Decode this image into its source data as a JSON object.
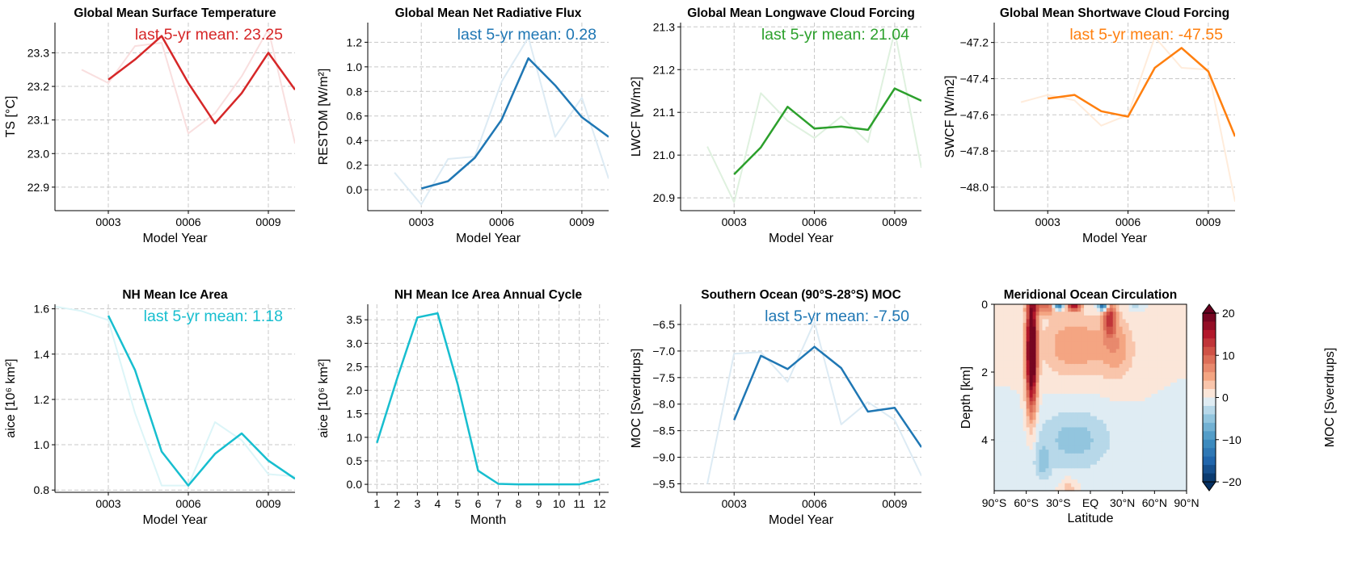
{
  "chart_data": [
    {
      "id": "ts",
      "type": "line",
      "title": "Global Mean Surface Temperature",
      "xlabel": "Model Year",
      "ylabel": "TS [°C]",
      "annotation": "last 5-yr mean: 23.25",
      "color": "#d62728",
      "xlim": [
        1,
        10
      ],
      "ylim": [
        22.83,
        23.39
      ],
      "yticks": [
        "22.9",
        "23.0",
        "23.1",
        "23.2",
        "23.3"
      ],
      "xticks": [
        "0003",
        "0006",
        "0009"
      ],
      "series": [
        {
          "style": "annual",
          "x": [
            3,
            4,
            5,
            6,
            7,
            8,
            9,
            10
          ],
          "y": [
            23.22,
            23.28,
            23.35,
            23.21,
            23.09,
            23.18,
            23.3,
            23.19
          ]
        },
        {
          "style": "faint",
          "x": [
            2,
            3,
            4,
            5,
            6,
            7,
            8,
            9,
            10
          ],
          "y": [
            23.25,
            23.21,
            23.32,
            23.33,
            23.06,
            23.12,
            23.23,
            23.37,
            23.03
          ]
        }
      ]
    },
    {
      "id": "restom",
      "type": "line",
      "title": "Global Mean Net Radiative Flux",
      "xlabel": "Model Year",
      "ylabel": "RESTOM [W/m²]",
      "annotation": "last 5-yr mean: 0.28",
      "color": "#1f77b4",
      "xlim": [
        1,
        10
      ],
      "ylim": [
        -0.17,
        1.36
      ],
      "yticks": [
        "0.0",
        "0.2",
        "0.4",
        "0.6",
        "0.8",
        "1.0",
        "1.2"
      ],
      "xticks": [
        "0003",
        "0006",
        "0009"
      ],
      "series": [
        {
          "style": "annual",
          "x": [
            3,
            4,
            5,
            6,
            7,
            8,
            9,
            10
          ],
          "y": [
            0.01,
            0.07,
            0.26,
            0.57,
            1.07,
            0.85,
            0.59,
            0.43
          ]
        },
        {
          "style": "faint",
          "x": [
            2,
            3,
            4,
            5,
            6,
            7,
            8,
            9,
            10
          ],
          "y": [
            0.14,
            -0.12,
            0.25,
            0.27,
            0.88,
            1.24,
            0.43,
            0.75,
            0.09
          ]
        }
      ]
    },
    {
      "id": "lwcf",
      "type": "line",
      "title": "Global Mean Longwave Cloud Forcing",
      "xlabel": "Model Year",
      "ylabel": "LWCF [W/m2]",
      "annotation": "last 5-yr mean: 21.04",
      "color": "#2ca02c",
      "xlim": [
        1,
        10
      ],
      "ylim": [
        20.87,
        21.31
      ],
      "yticks": [
        "20.9",
        "21.0",
        "21.1",
        "21.2",
        "21.3"
      ],
      "xticks": [
        "0003",
        "0006",
        "0009"
      ],
      "series": [
        {
          "style": "annual",
          "x": [
            3,
            4,
            5,
            6,
            7,
            8,
            9,
            10
          ],
          "y": [
            20.955,
            21.018,
            21.113,
            21.062,
            21.067,
            21.059,
            21.156,
            21.127
          ]
        },
        {
          "style": "faint",
          "x": [
            2,
            3,
            4,
            5,
            6,
            7,
            8,
            9,
            10
          ],
          "y": [
            21.02,
            20.89,
            21.145,
            21.08,
            21.04,
            21.09,
            21.03,
            21.29,
            20.97
          ]
        }
      ]
    },
    {
      "id": "swcf",
      "type": "line",
      "title": "Global Mean Shortwave Cloud Forcing",
      "xlabel": "Model Year",
      "ylabel": "SWCF [W/m2]",
      "annotation": "last 5-yr mean: -47.55",
      "color": "#ff7f0e",
      "xlim": [
        1,
        10
      ],
      "ylim": [
        -48.13,
        -47.09
      ],
      "yticks": [
        "−48.0",
        "−47.8",
        "−47.6",
        "−47.4",
        "−47.2"
      ],
      "xticks": [
        "0003",
        "0006",
        "0009"
      ],
      "series": [
        {
          "style": "annual",
          "x": [
            3,
            4,
            5,
            6,
            7,
            8,
            9,
            10
          ],
          "y": [
            -47.51,
            -47.49,
            -47.58,
            -47.61,
            -47.34,
            -47.23,
            -47.36,
            -47.72
          ]
        },
        {
          "style": "faint",
          "x": [
            2,
            3,
            4,
            5,
            6,
            7,
            8,
            9,
            10
          ],
          "y": [
            -47.53,
            -47.49,
            -47.52,
            -47.66,
            -47.6,
            -47.17,
            -47.34,
            -47.35,
            -48.08
          ]
        }
      ]
    },
    {
      "id": "ice",
      "type": "line",
      "title": "NH Mean Ice Area",
      "xlabel": "Model Year",
      "ylabel": "aice [10⁶ km²]",
      "annotation": "last 5-yr mean: 1.18",
      "color": "#17becf",
      "xlim": [
        1,
        10
      ],
      "ylim": [
        0.79,
        1.62
      ],
      "yticks": [
        "0.8",
        "1.0",
        "1.2",
        "1.4",
        "1.6"
      ],
      "xticks": [
        "0003",
        "0006",
        "0009"
      ],
      "series": [
        {
          "style": "annual",
          "x": [
            3,
            4,
            5,
            6,
            7,
            8,
            9,
            10
          ],
          "y": [
            1.57,
            1.33,
            0.97,
            0.82,
            0.96,
            1.05,
            0.93,
            0.85
          ]
        },
        {
          "style": "faint",
          "x": [
            1,
            2,
            3,
            4,
            5,
            6,
            7,
            8,
            9,
            10
          ],
          "y": [
            1.61,
            1.59,
            1.55,
            1.14,
            0.82,
            0.82,
            1.1,
            1.02,
            0.87,
            0.86
          ]
        }
      ]
    },
    {
      "id": "icecycle",
      "type": "line",
      "title": "NH Mean Ice Area Annual Cycle",
      "xlabel": "Month",
      "ylabel": "aice [10⁶ km²]",
      "annotation": "",
      "color": "#17becf",
      "xlim": [
        0.55,
        12.45
      ],
      "ylim": [
        -0.17,
        3.83
      ],
      "yticks": [
        "0.0",
        "0.5",
        "1.0",
        "1.5",
        "2.0",
        "2.5",
        "3.0",
        "3.5"
      ],
      "xticks": [
        "1",
        "2",
        "3",
        "4",
        "5",
        "6",
        "7",
        "8",
        "9",
        "10",
        "11",
        "12"
      ],
      "series": [
        {
          "style": "annual",
          "x": [
            1,
            2,
            3,
            4,
            5,
            6,
            7,
            8,
            9,
            10,
            11,
            12
          ],
          "y": [
            0.88,
            2.25,
            3.55,
            3.64,
            2.12,
            0.29,
            0.01,
            0.0,
            0.0,
            0.0,
            0.0,
            0.11
          ]
        }
      ]
    },
    {
      "id": "moc",
      "type": "line",
      "title": "Southern Ocean (90°S-28°S) MOC",
      "xlabel": "Model Year",
      "ylabel": "MOC [Sverdrups]",
      "annotation": "last 5-yr mean: -7.50",
      "color": "#1f77b4",
      "xlim": [
        1,
        10
      ],
      "ylim": [
        -9.66,
        -6.12
      ],
      "yticks": [
        "−9.5",
        "−9.0",
        "−8.5",
        "−8.0",
        "−7.5",
        "−7.0",
        "−6.5"
      ],
      "xticks": [
        "0003",
        "0006",
        "0009"
      ],
      "series": [
        {
          "style": "annual",
          "x": [
            3,
            4,
            5,
            6,
            7,
            8,
            9,
            10
          ],
          "y": [
            -8.3,
            -7.09,
            -7.34,
            -6.92,
            -7.32,
            -8.14,
            -8.07,
            -8.81
          ]
        },
        {
          "style": "faint",
          "x": [
            2,
            3,
            4,
            5,
            6,
            7,
            8,
            9,
            10
          ],
          "y": [
            -9.5,
            -7.05,
            -7.02,
            -7.58,
            -6.45,
            -8.38,
            -7.96,
            -8.3,
            -9.35
          ]
        }
      ]
    },
    {
      "id": "moc-map",
      "type": "heatmap",
      "title": "Meridional Ocean Circulation",
      "xlabel": "Latitude",
      "ylabel": "Depth [km]",
      "colorbar_label": "MOC [Sverdrups]",
      "colorbar_ticks": [
        "−20",
        "−10",
        "0",
        "10",
        "20"
      ],
      "clim": [
        -20,
        20
      ],
      "levels": 20,
      "colormap": "RdBu_r",
      "xlim": [
        -90,
        90
      ],
      "ylim": [
        0,
        5.5
      ],
      "xticks": [
        "90°S",
        "60°S",
        "30°S",
        "EQ",
        "30°N",
        "60°N",
        "90°N"
      ],
      "yticks": [
        "0",
        "2",
        "4"
      ],
      "features": [
        {
          "lat": -55,
          "depth": 1.4,
          "value": 26,
          "lat_w": 5,
          "depth_w": 1.7
        },
        {
          "lat": -42,
          "depth": 0.05,
          "value": 9,
          "lat_w": 14,
          "depth_w": 0.25
        },
        {
          "lat": -30,
          "depth": 0.05,
          "value": -17,
          "lat_w": 5,
          "depth_w": 0.13
        },
        {
          "lat": -15,
          "depth": 0.05,
          "value": 15,
          "lat_w": 6,
          "depth_w": 0.15
        },
        {
          "lat": 12,
          "depth": 0.05,
          "value": -16,
          "lat_w": 5,
          "depth_w": 0.14
        },
        {
          "lat": 18,
          "depth": 0.4,
          "value": 12,
          "lat_w": 6,
          "depth_w": 0.5
        },
        {
          "lat": -15,
          "depth": 1.2,
          "value": 6,
          "lat_w": 30,
          "depth_w": 0.9
        },
        {
          "lat": 25,
          "depth": 1.3,
          "value": 5,
          "lat_w": 16,
          "depth_w": 0.9
        },
        {
          "lat": 42,
          "depth": 0.05,
          "value": -4,
          "lat_w": 5,
          "depth_w": 0.15
        },
        {
          "lat": -15,
          "depth": 4.0,
          "value": -5,
          "lat_w": 35,
          "depth_w": 0.9
        },
        {
          "lat": -45,
          "depth": 4.7,
          "value": -4,
          "lat_w": 8,
          "depth_w": 0.5
        },
        {
          "lat": -20,
          "depth": 5.4,
          "value": 3,
          "lat_w": 8,
          "depth_w": 0.3
        }
      ]
    }
  ]
}
